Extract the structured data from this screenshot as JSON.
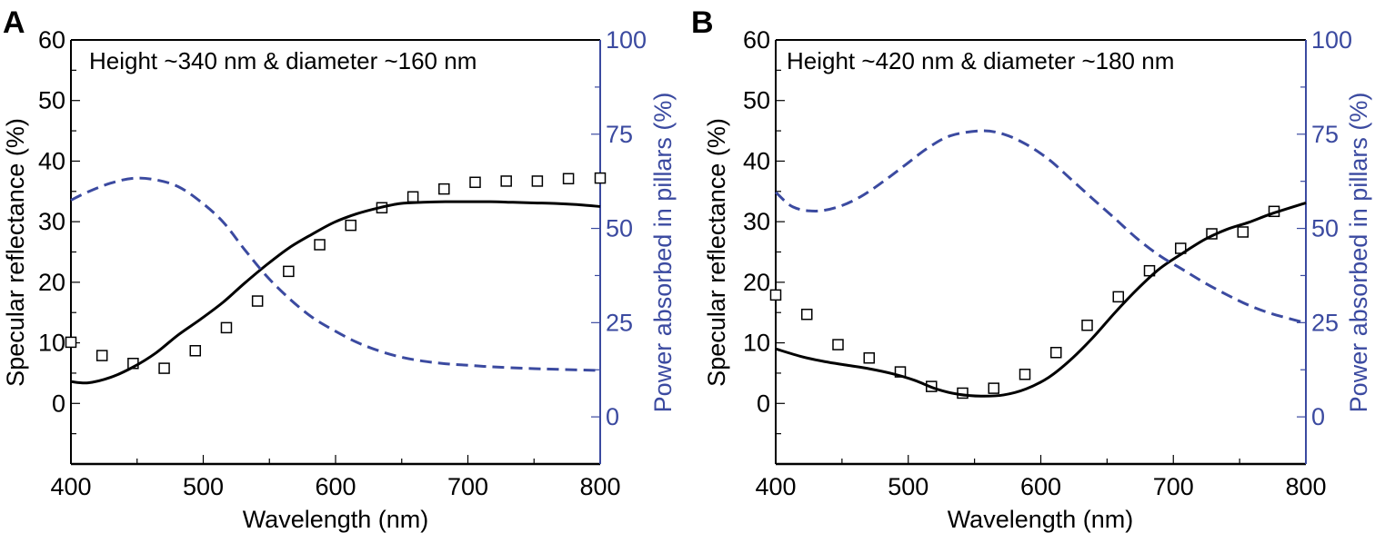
{
  "colors": {
    "reflectance": "#000000",
    "absorbed": "#3b4aa0",
    "right_axis": "#3b4aa0"
  },
  "chart_data": [
    {
      "panel": "A",
      "type": "line",
      "annotation": "Height ~340 nm & diameter ~160 nm",
      "xlabel": "Wavelength (nm)",
      "ylabel": "Specular reflectance (%)",
      "ylabel_right": "Power absorbed in pillars (%)",
      "xlim": [
        400,
        800
      ],
      "ylim": [
        -10,
        60
      ],
      "ylim_right": [
        -12.5,
        100
      ],
      "xticks": [
        "400",
        "500",
        "600",
        "700",
        "800"
      ],
      "yticks": [
        "0",
        "10",
        "20",
        "30",
        "40",
        "50",
        "60"
      ],
      "yticks_right": [
        "0",
        "25",
        "50",
        "75",
        "100"
      ],
      "grid": false,
      "series": [
        {
          "kind": "measured-squares",
          "axis": "left",
          "x": [
            400,
            423.5,
            447,
            470.5,
            494,
            517.5,
            541,
            564.5,
            588,
            611.5,
            635,
            658.5,
            682,
            705.5,
            729,
            752.5,
            776,
            800
          ],
          "y": [
            10.1,
            7.9,
            6.6,
            5.8,
            8.7,
            12.5,
            16.9,
            21.8,
            26.2,
            29.4,
            32.3,
            34.1,
            35.4,
            36.5,
            36.7,
            36.7,
            37.1,
            37.2
          ]
        },
        {
          "kind": "simulated-solid",
          "axis": "left",
          "x": [
            400,
            413,
            430,
            447,
            464,
            481,
            498,
            515,
            531,
            548,
            565,
            582,
            599,
            616,
            633,
            649,
            666,
            683,
            700,
            717,
            734,
            750,
            767,
            784,
            800
          ],
          "y": [
            3.6,
            3.4,
            4.3,
            6.0,
            8.3,
            11.3,
            13.9,
            16.7,
            19.8,
            22.9,
            25.7,
            27.9,
            29.9,
            31.3,
            32.3,
            33.0,
            33.2,
            33.3,
            33.3,
            33.3,
            33.2,
            33.1,
            33.0,
            32.8,
            32.5
          ]
        },
        {
          "kind": "absorbed-dashed",
          "axis": "right",
          "x": [
            400,
            413,
            430,
            447,
            464,
            481,
            498,
            515,
            531,
            548,
            565,
            582,
            599,
            616,
            633,
            649,
            666,
            683,
            700,
            717,
            750,
            800
          ],
          "y": [
            57.5,
            59.7,
            62.0,
            63.3,
            62.9,
            61.1,
            57.1,
            51.7,
            44.5,
            37.3,
            31.4,
            26.5,
            22.9,
            19.8,
            17.5,
            15.9,
            14.8,
            14.1,
            13.7,
            13.3,
            12.8,
            12.3
          ]
        }
      ]
    },
    {
      "panel": "B",
      "type": "line",
      "annotation": "Height ~420 nm & diameter ~180 nm",
      "xlabel": "Wavelength (nm)",
      "ylabel": "Specular reflectance (%)",
      "ylabel_right": "Power absorbed in pillars (%)",
      "xlim": [
        400,
        800
      ],
      "ylim": [
        -10,
        60
      ],
      "ylim_right": [
        -12.5,
        100
      ],
      "xticks": [
        "400",
        "500",
        "600",
        "700",
        "800"
      ],
      "yticks": [
        "0",
        "10",
        "20",
        "30",
        "40",
        "50",
        "60"
      ],
      "yticks_right": [
        "0",
        "25",
        "50",
        "75",
        "100"
      ],
      "grid": false,
      "series": [
        {
          "kind": "measured-squares",
          "axis": "left",
          "x": [
            400,
            423.5,
            447,
            470.5,
            494,
            517.5,
            541,
            564.5,
            588,
            611.5,
            635,
            658.5,
            682,
            705.5,
            729,
            752.5,
            776
          ],
          "y": [
            17.9,
            14.7,
            9.7,
            7.5,
            5.2,
            2.8,
            1.7,
            2.5,
            4.8,
            8.4,
            12.9,
            17.6,
            21.9,
            25.6,
            28.0,
            28.3,
            31.7
          ]
        },
        {
          "kind": "simulated-solid",
          "axis": "left",
          "x": [
            400,
            420,
            437,
            454,
            471,
            488,
            505,
            521,
            538,
            555,
            572,
            589,
            606,
            622,
            639,
            656,
            673,
            690,
            707,
            724,
            740,
            757,
            774,
            800
          ],
          "y": [
            9.0,
            7.7,
            6.9,
            6.3,
            5.7,
            4.9,
            3.8,
            2.4,
            1.5,
            1.2,
            1.4,
            2.4,
            4.3,
            7.1,
            10.8,
            15.0,
            18.9,
            22.3,
            24.8,
            27.1,
            28.7,
            29.9,
            31.3,
            33.1
          ]
        },
        {
          "kind": "absorbed-dashed",
          "axis": "right",
          "x": [
            400,
            413,
            430,
            447,
            464,
            481,
            498,
            515,
            532,
            555,
            572,
            589,
            606,
            622,
            639,
            656,
            673,
            690,
            707,
            724,
            741,
            757,
            774,
            800
          ],
          "y": [
            59.6,
            55.7,
            54.6,
            55.7,
            58.4,
            62.4,
            66.9,
            71.4,
            74.6,
            75.9,
            75.0,
            72.3,
            68.3,
            63.3,
            57.9,
            52.6,
            47.2,
            42.7,
            39.1,
            35.5,
            32.3,
            29.6,
            27.4,
            24.9
          ]
        }
      ]
    }
  ]
}
